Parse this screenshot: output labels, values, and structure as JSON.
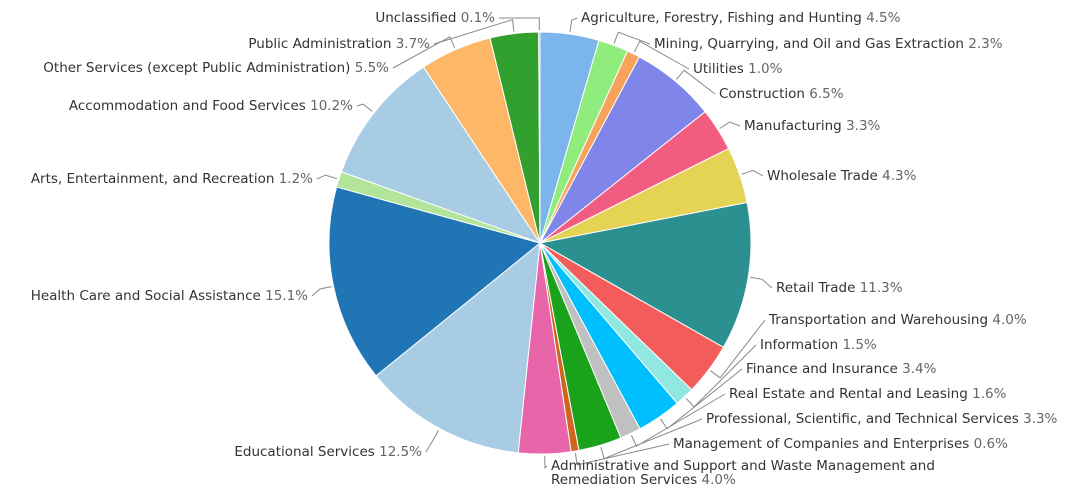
{
  "chart_data": {
    "type": "pie",
    "title": "",
    "start_angle_deg": 0,
    "direction": "clockwise",
    "slices": [
      {
        "label": "Agriculture, Forestry, Fishing and Hunting",
        "value": 4.5,
        "display": "4.5%",
        "color": "#7cb5ec"
      },
      {
        "label": "Mining, Quarrying, and Oil and Gas Extraction",
        "value": 2.3,
        "display": "2.3%",
        "color": "#90ed7d"
      },
      {
        "label": "Utilities",
        "value": 1.0,
        "display": "1.0%",
        "color": "#f7a35c"
      },
      {
        "label": "Construction",
        "value": 6.5,
        "display": "6.5%",
        "color": "#8085e9"
      },
      {
        "label": "Manufacturing",
        "value": 3.3,
        "display": "3.3%",
        "color": "#f15c80"
      },
      {
        "label": "Wholesale Trade",
        "value": 4.3,
        "display": "4.3%",
        "color": "#e4d354"
      },
      {
        "label": "Retail Trade",
        "value": 11.3,
        "display": "11.3%",
        "color": "#2b908f"
      },
      {
        "label": "Transportation and Warehousing",
        "value": 4.0,
        "display": "4.0%",
        "color": "#f45b5b"
      },
      {
        "label": "Information",
        "value": 1.5,
        "display": "1.5%",
        "color": "#91e8e1"
      },
      {
        "label": "Finance and Insurance",
        "value": 3.4,
        "display": "3.4%",
        "color": "#00bfff"
      },
      {
        "label": "Real Estate and Rental and Leasing",
        "value": 1.6,
        "display": "1.6%",
        "color": "#c0c0c0"
      },
      {
        "label": "Professional, Scientific, and Technical Services",
        "value": 3.3,
        "display": "3.3%",
        "color": "#1aa31a"
      },
      {
        "label": "Management of Companies and Enterprises",
        "value": 0.6,
        "display": "0.6%",
        "color": "#d0651d"
      },
      {
        "label": "Administrative and Support and Waste Management and Remediation Services",
        "value": 4.0,
        "display": "4.0%",
        "color": "#e765a8"
      },
      {
        "label": "Educational Services",
        "value": 12.5,
        "display": "12.5%",
        "color": "#a8cce4"
      },
      {
        "label": "Health Care and Social Assistance",
        "value": 15.1,
        "display": "15.1%",
        "color": "#2076b5"
      },
      {
        "label": "Arts, Entertainment, and Recreation",
        "value": 1.2,
        "display": "1.2%",
        "color": "#b2e59a"
      },
      {
        "label": "Accommodation and Food Services",
        "value": 10.2,
        "display": "10.2%",
        "color": "#a8cce4"
      },
      {
        "label": "Other Services (except Public Administration)",
        "value": 5.5,
        "display": "5.5%",
        "color": "#fdb767"
      },
      {
        "label": "Public Administration",
        "value": 3.7,
        "display": "3.7%",
        "color": "#31a02e"
      },
      {
        "label": "Unclassified",
        "value": 0.1,
        "display": "0.1%",
        "color": "#8a6fc8"
      }
    ]
  }
}
